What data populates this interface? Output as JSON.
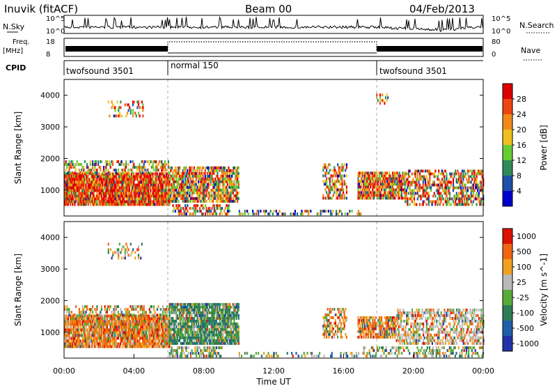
{
  "header": {
    "station": "Inuvik (fitACF)",
    "beam": "Beam 00",
    "date": "04/Feb/2013"
  },
  "nsky_panel": {
    "label": "N.Sky",
    "right_label": "N.Search",
    "yticks_left": [
      "10^5",
      "10^0"
    ],
    "yticks_right": [
      "10^5",
      "10^0"
    ]
  },
  "freq_panel": {
    "label_top": "Freq.",
    "label_unit": "[MHz]",
    "yticks_left": [
      "18",
      "8"
    ],
    "yticks_right": [
      "80",
      "0"
    ],
    "right_label": "Nave"
  },
  "cpid_panel": {
    "label": "CPID",
    "modes": [
      {
        "name": "twofsound 3501",
        "start_hour": 0,
        "end_hour": 6
      },
      {
        "name": "normal 150",
        "start_hour": 6,
        "end_hour": 18
      },
      {
        "name": "twofsound 3501",
        "start_hour": 18,
        "end_hour": 24
      }
    ]
  },
  "power_colorbar": {
    "label": "Power [dB]",
    "ticks": [
      "4",
      "8",
      "12",
      "16",
      "20",
      "24",
      "28"
    ],
    "colors": [
      "#0000cc",
      "#1f4fa8",
      "#2e8b57",
      "#66cc33",
      "#f0c020",
      "#f08a1a",
      "#ee4411",
      "#dd0000"
    ]
  },
  "velocity_colorbar": {
    "label": "Velocity [m s^-1]",
    "ticks": [
      "1000",
      "500",
      "100",
      "25",
      "-25",
      "-100",
      "-500",
      "-1000"
    ],
    "colors": [
      "#2233aa",
      "#1f5fa8",
      "#2e7d55",
      "#5aaa3a",
      "#b9b9b9",
      "#f0a020",
      "#ee6611",
      "#dd1100"
    ]
  },
  "chart_data": [
    {
      "type": "heatmap",
      "title": "Power",
      "ylabel": "Slant Range [km]",
      "xlim": [
        0,
        24
      ],
      "ylim": [
        180,
        4500
      ],
      "yticks": [
        1000,
        2000,
        3000,
        4000
      ],
      "colorbar_label": "Power [dB]"
    },
    {
      "type": "heatmap",
      "title": "Velocity",
      "ylabel": "Slant Range [km]",
      "xlabel": "Time UT",
      "xlim": [
        0,
        24
      ],
      "ylim": [
        180,
        4500
      ],
      "yticks": [
        1000,
        2000,
        3000,
        4000
      ],
      "xticks": [
        "00:00",
        "04:00",
        "08:00",
        "12:00",
        "16:00",
        "20:00",
        "00:00"
      ],
      "colorbar_label": "Velocity [m s^-1]"
    }
  ]
}
